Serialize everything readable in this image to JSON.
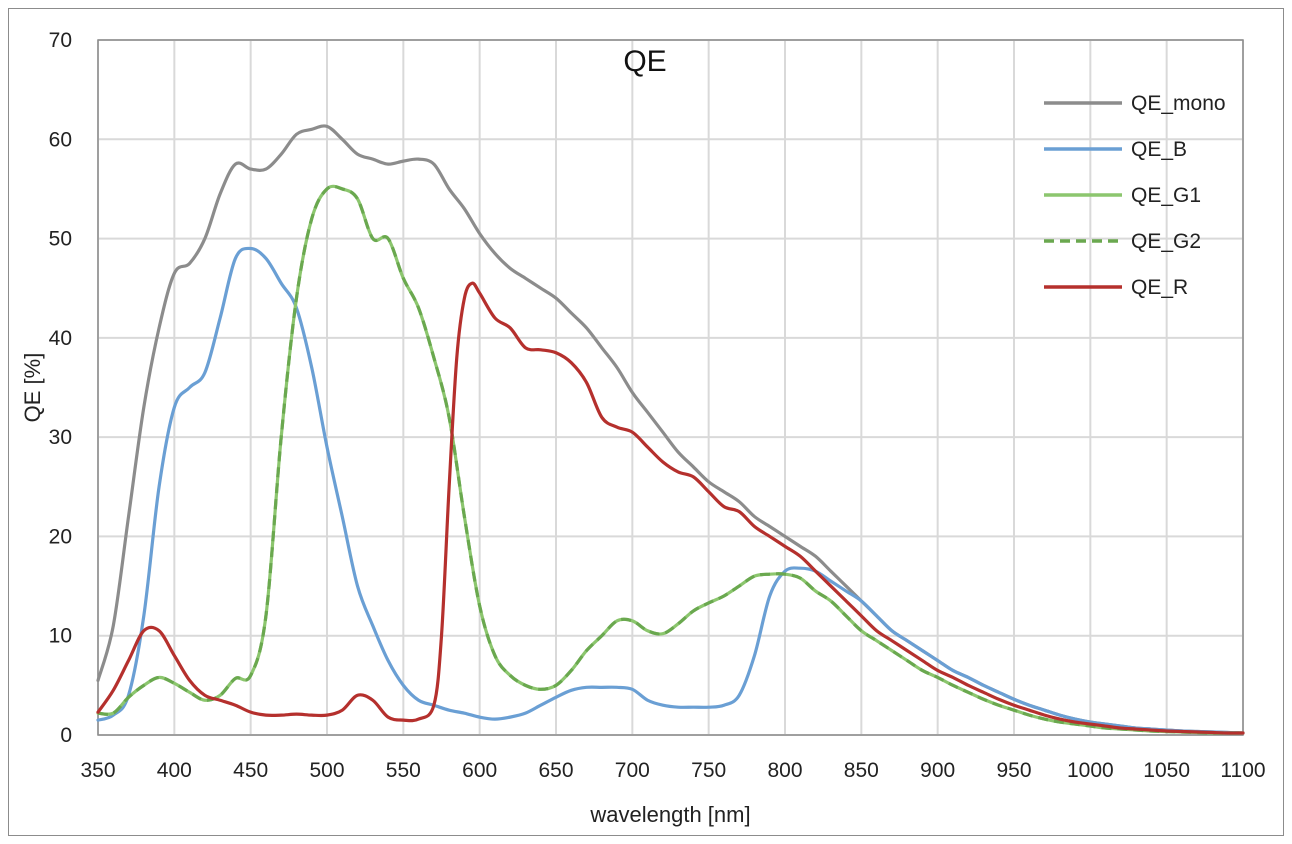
{
  "chart_data": {
    "type": "line",
    "title": "QE",
    "xlabel": "wavelength [nm]",
    "ylabel": "QE [%]",
    "xlim": [
      350,
      1100
    ],
    "ylim": [
      0,
      70
    ],
    "xticks": [
      350,
      400,
      450,
      500,
      550,
      600,
      650,
      700,
      750,
      800,
      850,
      900,
      950,
      1000,
      1050,
      1100
    ],
    "xtick_labels": [
      "350",
      "400",
      "450",
      "500",
      "550",
      "600",
      "650",
      "700",
      "750",
      "800",
      "850",
      "900",
      "950",
      "1000",
      "1050",
      "1100"
    ],
    "yticks": [
      0,
      10,
      20,
      30,
      40,
      50,
      60,
      70
    ],
    "ytick_labels": [
      "0",
      "10",
      "20",
      "30",
      "40",
      "50",
      "60",
      "70"
    ],
    "grid": true,
    "legend_position": "top-right",
    "series": [
      {
        "name": "QE_mono",
        "color": "#8c8c8c",
        "dash": "solid",
        "x": [
          350,
          360,
          370,
          380,
          390,
          400,
          410,
          420,
          430,
          440,
          450,
          460,
          470,
          480,
          490,
          500,
          510,
          520,
          530,
          540,
          550,
          560,
          570,
          580,
          590,
          600,
          610,
          620,
          630,
          640,
          650,
          660,
          670,
          680,
          690,
          700,
          710,
          720,
          730,
          740,
          750,
          760,
          770,
          780,
          790,
          800,
          810,
          820,
          830,
          840,
          850,
          860,
          870,
          880,
          890,
          900,
          910,
          920,
          930,
          940,
          950,
          960,
          970,
          980,
          990,
          1000,
          1010,
          1020,
          1030,
          1040,
          1050,
          1060,
          1070,
          1080,
          1090,
          1100
        ],
        "y": [
          5.5,
          11,
          22,
          33,
          41,
          46.5,
          47.5,
          50,
          54.5,
          57.5,
          57,
          57,
          58.5,
          60.5,
          61,
          61.3,
          60,
          58.5,
          58,
          57.5,
          57.8,
          58,
          57.5,
          55,
          53,
          50.5,
          48.5,
          47,
          46,
          45,
          44,
          42.5,
          41,
          39,
          37,
          34.5,
          32.5,
          30.5,
          28.5,
          27,
          25.5,
          24.5,
          23.5,
          22,
          21,
          20,
          19,
          18,
          16.5,
          15,
          13.5,
          12,
          10.5,
          9.5,
          8.5,
          7.5,
          6.5,
          5.8,
          5,
          4.3,
          3.6,
          3,
          2.5,
          2,
          1.6,
          1.3,
          1.1,
          0.9,
          0.7,
          0.6,
          0.5,
          0.4,
          0.35,
          0.3,
          0.25,
          0.2
        ]
      },
      {
        "name": "QE_B",
        "color": "#6a9fd4",
        "dash": "solid",
        "x": [
          350,
          360,
          370,
          380,
          390,
          400,
          410,
          420,
          430,
          440,
          450,
          460,
          470,
          480,
          490,
          500,
          510,
          520,
          530,
          540,
          550,
          560,
          570,
          580,
          590,
          600,
          610,
          620,
          630,
          640,
          650,
          660,
          670,
          680,
          690,
          700,
          710,
          720,
          730,
          740,
          750,
          760,
          770,
          780,
          790,
          800,
          810,
          820,
          830,
          840,
          850,
          860,
          870,
          880,
          890,
          900,
          910,
          920,
          930,
          940,
          950,
          960,
          970,
          980,
          990,
          1000,
          1010,
          1020,
          1030,
          1040,
          1050,
          1060,
          1070,
          1080,
          1090,
          1100
        ],
        "y": [
          1.5,
          2,
          4,
          12,
          25,
          33,
          35,
          36.5,
          42,
          48,
          49,
          48,
          45.5,
          43,
          37,
          29,
          22,
          15,
          11,
          7.5,
          5,
          3.5,
          3,
          2.5,
          2.2,
          1.8,
          1.6,
          1.8,
          2.2,
          3,
          3.8,
          4.5,
          4.8,
          4.8,
          4.8,
          4.6,
          3.5,
          3,
          2.8,
          2.8,
          2.8,
          3,
          4,
          8,
          14,
          16.5,
          16.8,
          16.5,
          15.5,
          14.5,
          13.5,
          12,
          10.5,
          9.5,
          8.5,
          7.5,
          6.5,
          5.8,
          5,
          4.3,
          3.6,
          3,
          2.5,
          2,
          1.6,
          1.3,
          1.1,
          0.9,
          0.7,
          0.6,
          0.5,
          0.4,
          0.35,
          0.3,
          0.25,
          0.2
        ]
      },
      {
        "name": "QE_G1",
        "color": "#8cc66e",
        "dash": "solid",
        "x": [
          350,
          360,
          370,
          380,
          390,
          400,
          410,
          420,
          430,
          440,
          450,
          460,
          470,
          480,
          490,
          500,
          510,
          520,
          530,
          540,
          550,
          560,
          570,
          580,
          590,
          600,
          610,
          620,
          630,
          640,
          650,
          660,
          670,
          680,
          690,
          700,
          710,
          720,
          730,
          740,
          750,
          760,
          770,
          780,
          790,
          800,
          810,
          820,
          830,
          840,
          850,
          860,
          870,
          880,
          890,
          900,
          910,
          920,
          930,
          940,
          950,
          960,
          970,
          980,
          990,
          1000,
          1010,
          1020,
          1030,
          1040,
          1050,
          1060,
          1070,
          1080,
          1090,
          1100
        ],
        "y": [
          2.2,
          2.2,
          3.8,
          5,
          5.8,
          5.2,
          4.3,
          3.5,
          4,
          5.7,
          6,
          12,
          30,
          44,
          52,
          55,
          55,
          54,
          50,
          50,
          46,
          43,
          38,
          32,
          22,
          13,
          8,
          6,
          5,
          4.6,
          5,
          6.5,
          8.5,
          10,
          11.5,
          11.5,
          10.5,
          10.2,
          11.2,
          12.5,
          13.3,
          14,
          15,
          16,
          16.2,
          16.2,
          15.8,
          14.5,
          13.5,
          12,
          10.5,
          9.5,
          8.5,
          7.5,
          6.5,
          5.8,
          5,
          4.3,
          3.6,
          3,
          2.5,
          2,
          1.6,
          1.3,
          1.1,
          0.9,
          0.7,
          0.6,
          0.5,
          0.4,
          0.35,
          0.3,
          0.25,
          0.2,
          0.2,
          0.2
        ]
      },
      {
        "name": "QE_G2",
        "color": "#6aa84f",
        "dash": "dashed",
        "x": [
          350,
          360,
          370,
          380,
          390,
          400,
          410,
          420,
          430,
          440,
          450,
          460,
          470,
          480,
          490,
          500,
          510,
          520,
          530,
          540,
          550,
          560,
          570,
          580,
          590,
          600,
          610,
          620,
          630,
          640,
          650,
          660,
          670,
          680,
          690,
          700,
          710,
          720,
          730,
          740,
          750,
          760,
          770,
          780,
          790,
          800,
          810,
          820,
          830,
          840,
          850,
          860,
          870,
          880,
          890,
          900,
          910,
          920,
          930,
          940,
          950,
          960,
          970,
          980,
          990,
          1000,
          1010,
          1020,
          1030,
          1040,
          1050,
          1060,
          1070,
          1080,
          1090,
          1100
        ],
        "y": [
          2.2,
          2.2,
          3.8,
          5,
          5.8,
          5.2,
          4.3,
          3.5,
          4,
          5.7,
          6,
          12,
          30,
          44,
          52,
          55,
          55,
          54,
          50,
          50,
          46,
          43,
          38,
          32,
          22,
          13,
          8,
          6,
          5,
          4.6,
          5,
          6.5,
          8.5,
          10,
          11.5,
          11.5,
          10.5,
          10.2,
          11.2,
          12.5,
          13.3,
          14,
          15,
          16,
          16.2,
          16.2,
          15.8,
          14.5,
          13.5,
          12,
          10.5,
          9.5,
          8.5,
          7.5,
          6.5,
          5.8,
          5,
          4.3,
          3.6,
          3,
          2.5,
          2,
          1.6,
          1.3,
          1.1,
          0.9,
          0.7,
          0.6,
          0.5,
          0.4,
          0.35,
          0.3,
          0.25,
          0.2,
          0.2,
          0.2
        ]
      },
      {
        "name": "QE_R",
        "color": "#b5302d",
        "dash": "solid",
        "x": [
          350,
          360,
          370,
          380,
          390,
          400,
          410,
          420,
          430,
          440,
          450,
          460,
          470,
          480,
          490,
          500,
          510,
          520,
          530,
          540,
          550,
          560,
          570,
          575,
          580,
          585,
          590,
          595,
          600,
          610,
          620,
          630,
          640,
          650,
          660,
          670,
          680,
          690,
          700,
          710,
          720,
          730,
          740,
          750,
          760,
          770,
          780,
          790,
          800,
          810,
          820,
          830,
          840,
          850,
          860,
          870,
          880,
          890,
          900,
          910,
          920,
          930,
          940,
          950,
          960,
          970,
          980,
          990,
          1000,
          1010,
          1020,
          1030,
          1040,
          1050,
          1060,
          1070,
          1080,
          1090,
          1100
        ],
        "y": [
          2.3,
          4.5,
          7.5,
          10.5,
          10.5,
          8,
          5.5,
          4,
          3.5,
          3,
          2.3,
          2,
          2,
          2.1,
          2,
          2,
          2.5,
          4,
          3.5,
          1.8,
          1.5,
          1.6,
          3,
          10,
          25,
          38,
          44,
          45.5,
          44.5,
          42,
          41,
          39,
          38.8,
          38.5,
          37.5,
          35.5,
          32,
          31,
          30.5,
          29,
          27.5,
          26.5,
          26,
          24.5,
          23,
          22.5,
          21,
          20,
          19,
          18,
          16.5,
          15,
          13.5,
          12,
          10.5,
          9.5,
          8.5,
          7.5,
          6.5,
          5.8,
          5,
          4.3,
          3.6,
          3,
          2.5,
          2,
          1.6,
          1.3,
          1.1,
          0.9,
          0.7,
          0.6,
          0.5,
          0.4,
          0.35,
          0.3,
          0.25,
          0.2,
          0.2
        ]
      }
    ]
  }
}
